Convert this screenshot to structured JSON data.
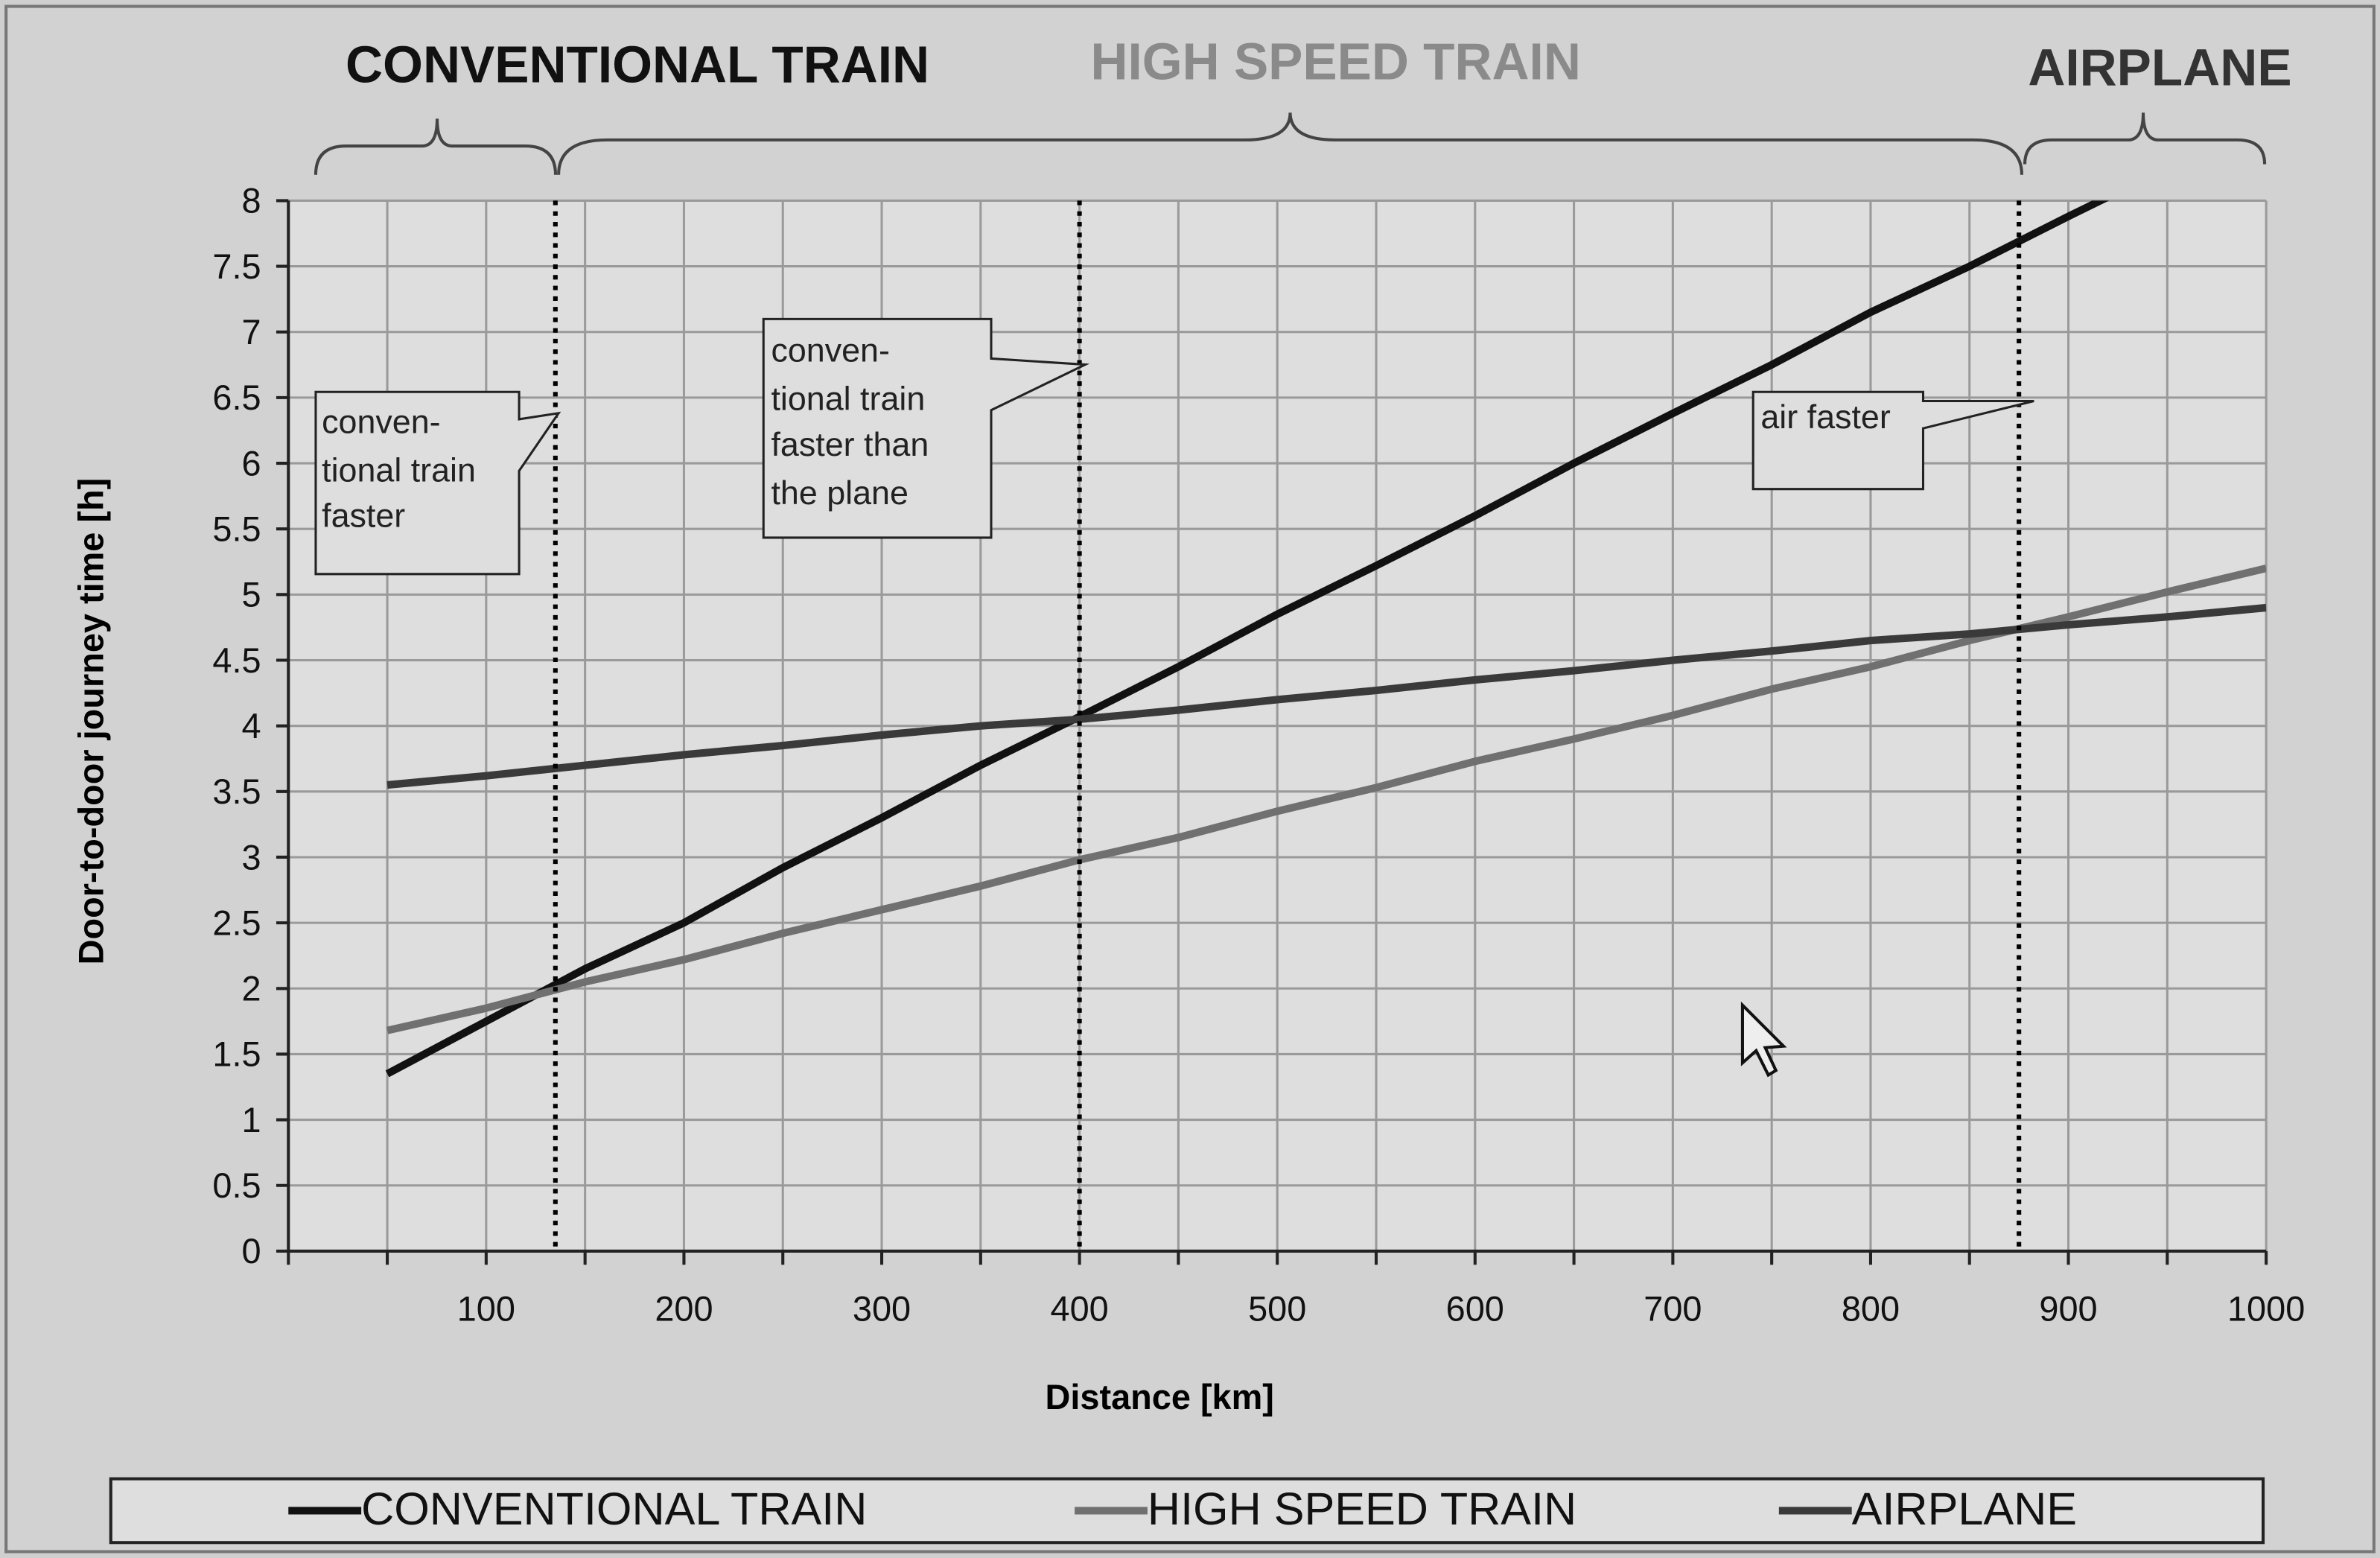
{
  "chart_data": {
    "type": "line",
    "xlabel": "Distance [km]",
    "ylabel": "Door-to-door journey time [h]",
    "regions": [
      {
        "label": "CONVENTIONAL TRAIN",
        "color": "#111111"
      },
      {
        "label": "HIGH SPEED TRAIN",
        "color": "#8a8a8a"
      },
      {
        "label": "AIRPLANE",
        "color": "#333333"
      }
    ],
    "dividers": [
      135,
      400,
      875
    ],
    "annotations": [
      {
        "lines": [
          "conven-",
          "tional train",
          "faster"
        ]
      },
      {
        "lines": [
          "conven-",
          "tional train",
          "faster than",
          "the plane"
        ]
      },
      {
        "lines": [
          "air faster"
        ]
      }
    ],
    "x": [
      50,
      100,
      150,
      200,
      250,
      300,
      350,
      400,
      450,
      500,
      550,
      600,
      650,
      700,
      750,
      800,
      850,
      900,
      950,
      1000
    ],
    "series": [
      {
        "name": "CONVENTIONAL TRAIN",
        "color": "#111111",
        "values": [
          1.35,
          1.75,
          2.15,
          2.5,
          2.92,
          3.3,
          3.7,
          4.07,
          4.45,
          4.85,
          5.22,
          5.6,
          6.0,
          6.38,
          6.75,
          7.15,
          7.5,
          7.88,
          8.25,
          8.6
        ]
      },
      {
        "name": "HIGH SPEED TRAIN",
        "color": "#707070",
        "values": [
          1.68,
          1.85,
          2.05,
          2.22,
          2.42,
          2.6,
          2.78,
          2.98,
          3.15,
          3.35,
          3.53,
          3.73,
          3.9,
          4.08,
          4.28,
          4.45,
          4.65,
          4.83,
          5.02,
          5.2
        ]
      },
      {
        "name": "AIRPLANE",
        "color": "#3a3a3a",
        "values": [
          3.55,
          3.62,
          3.7,
          3.78,
          3.85,
          3.93,
          4.0,
          4.05,
          4.12,
          4.2,
          4.27,
          4.35,
          4.42,
          4.5,
          4.57,
          4.65,
          4.7,
          4.77,
          4.83,
          4.9
        ]
      }
    ],
    "xlim": [
      0,
      1000
    ],
    "xticks": [
      100,
      200,
      300,
      400,
      500,
      600,
      700,
      800,
      900,
      1000
    ],
    "xminorticks": [
      50,
      150,
      250,
      350,
      450,
      550,
      650,
      750,
      850,
      950
    ],
    "ylim": [
      0,
      8
    ],
    "yticks": [
      0,
      0.5,
      1,
      1.5,
      2,
      2.5,
      3,
      3.5,
      4,
      4.5,
      5,
      5.5,
      6,
      6.5,
      7,
      7.5,
      8
    ],
    "grid": true,
    "legend": "bottom"
  }
}
